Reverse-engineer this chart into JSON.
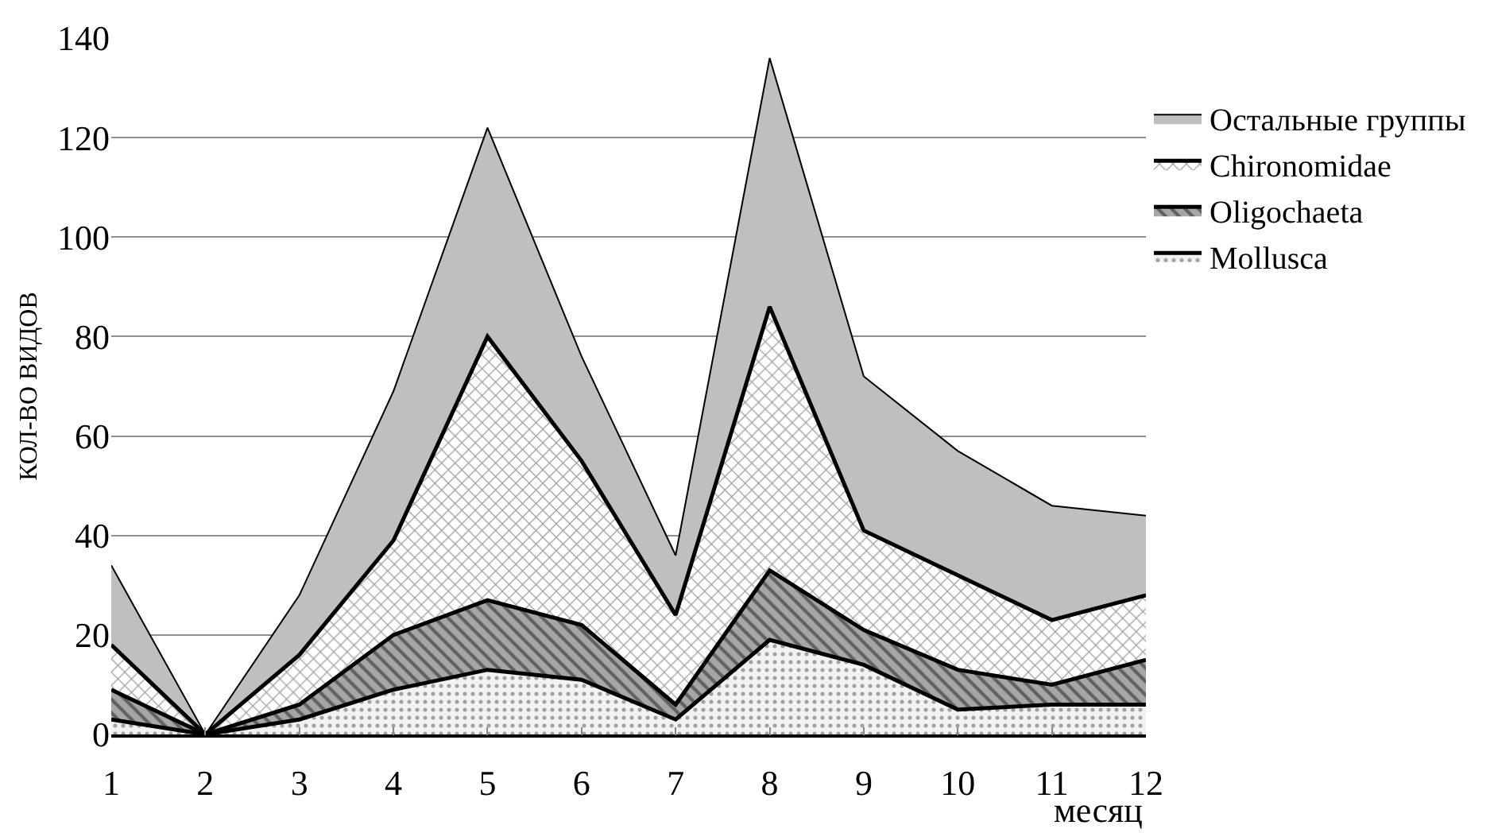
{
  "chart_data": {
    "type": "area",
    "stacked": true,
    "xlabel": "месяц",
    "ylabel": "КОЛ-ВО ВИДОВ",
    "x": [
      1,
      2,
      3,
      4,
      5,
      6,
      7,
      8,
      9,
      10,
      11,
      12
    ],
    "series": [
      {
        "name": "Mollusca",
        "color": "#f2f2f2",
        "values": [
          3,
          0,
          3,
          9,
          13,
          11,
          3,
          19,
          14,
          5,
          6,
          6
        ]
      },
      {
        "name": "Oligochaeta",
        "color": "#a6a6a6",
        "values": [
          6,
          0,
          3,
          11,
          14,
          11,
          3,
          14,
          7,
          8,
          4,
          9
        ]
      },
      {
        "name": "Chironomidae",
        "color": "#ffffff",
        "values": [
          9,
          0,
          10,
          19,
          53,
          33,
          18,
          53,
          20,
          19,
          13,
          13
        ]
      },
      {
        "name": "Остальные группы",
        "color": "#bfbfbf",
        "values": [
          16,
          0,
          12,
          30,
          42,
          21,
          12,
          50,
          31,
          25,
          23,
          16
        ]
      }
    ],
    "xlim": [
      1,
      12
    ],
    "xticks": [
      1,
      2,
      3,
      4,
      5,
      6,
      7,
      8,
      9,
      10,
      11,
      12
    ],
    "ylim": [
      0,
      140
    ],
    "yticks": [
      0,
      20,
      40,
      60,
      80,
      100,
      120,
      140
    ],
    "grid": "y",
    "legend": "top right"
  }
}
